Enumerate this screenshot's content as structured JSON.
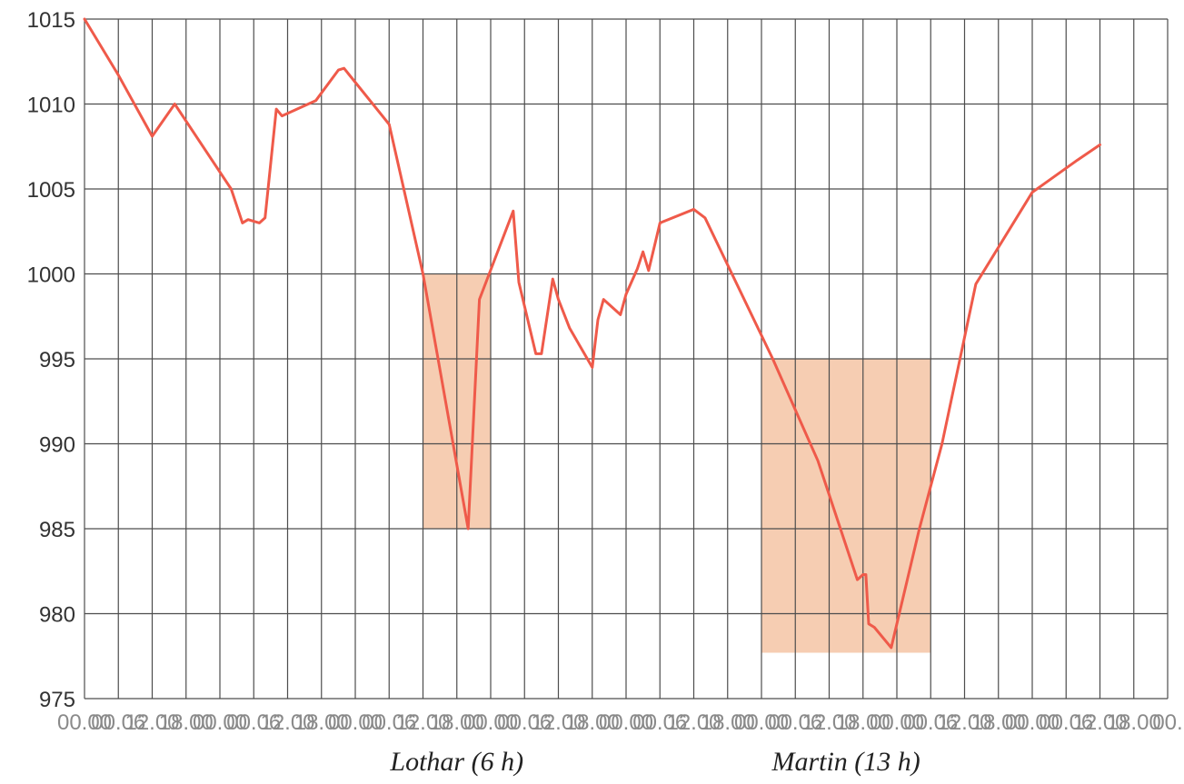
{
  "chart_data": {
    "type": "line",
    "title": "",
    "xlabel": "",
    "ylabel": "",
    "ylim": [
      975,
      1015
    ],
    "yticks": [
      975,
      980,
      985,
      990,
      995,
      1000,
      1005,
      1010,
      1015
    ],
    "grid": true,
    "x_tick_labels": [
      "00.00",
      "00.06",
      "12.00",
      "18.00",
      "00.00",
      "00.06",
      "12.00",
      "18.00",
      "00.00",
      "00.06",
      "12.00",
      "18.00",
      "00.00",
      "00.06",
      "12.00",
      "18.00",
      "00.00",
      "00.06",
      "12.00",
      "18.00",
      "00.00",
      "00.06",
      "12.00",
      "18.00",
      "00.00",
      "00.06",
      "12.00",
      "18.00",
      "00.00",
      "00.06",
      "12.00",
      "18.00",
      "00."
    ],
    "x_tick_step_hours": 6,
    "x_total_hours": 192,
    "series": [
      {
        "color": "#ef5a4a",
        "x_hours": [
          0,
          6,
          12,
          16,
          26,
          28,
          29,
          31,
          32,
          34,
          35,
          41,
          45,
          46,
          54,
          60,
          68,
          70,
          76,
          77,
          80,
          81,
          83,
          84,
          86,
          90,
          91,
          92,
          95,
          96,
          98,
          99,
          100,
          102,
          108,
          110,
          122,
          130,
          134,
          137,
          138,
          138.5,
          139,
          140,
          143,
          148,
          152,
          158,
          168,
          176,
          180
        ],
        "values": [
          1015,
          1011.7,
          1008.1,
          1010,
          1005,
          1003,
          1003.2,
          1003,
          1003.3,
          1009.7,
          1009.3,
          1010.2,
          1012,
          1012.1,
          1008.8,
          1000,
          985,
          998.5,
          1003.7,
          999.5,
          995.3,
          995.3,
          999.7,
          998.5,
          996.8,
          994.5,
          997.3,
          998.5,
          997.6,
          998.8,
          1000.3,
          1001.3,
          1000.2,
          1003,
          1003.8,
          1003.3,
          995,
          989,
          985,
          982,
          982.3,
          982.3,
          979.4,
          979.2,
          978,
          985,
          990,
          999.4,
          1004.8,
          1006.7,
          1007.6
        ]
      }
    ],
    "highlights": [
      {
        "label": "Lothar (6 h)",
        "x_start_hours": 60,
        "x_end_hours": 72,
        "y_low": 985,
        "y_high": 1000,
        "color": "#f6cdb2"
      },
      {
        "label": "Martin (13 h)",
        "x_start_hours": 120,
        "x_end_hours": 150,
        "y_low": 977.7,
        "y_high": 995,
        "color": "#f6cdb2"
      }
    ]
  }
}
